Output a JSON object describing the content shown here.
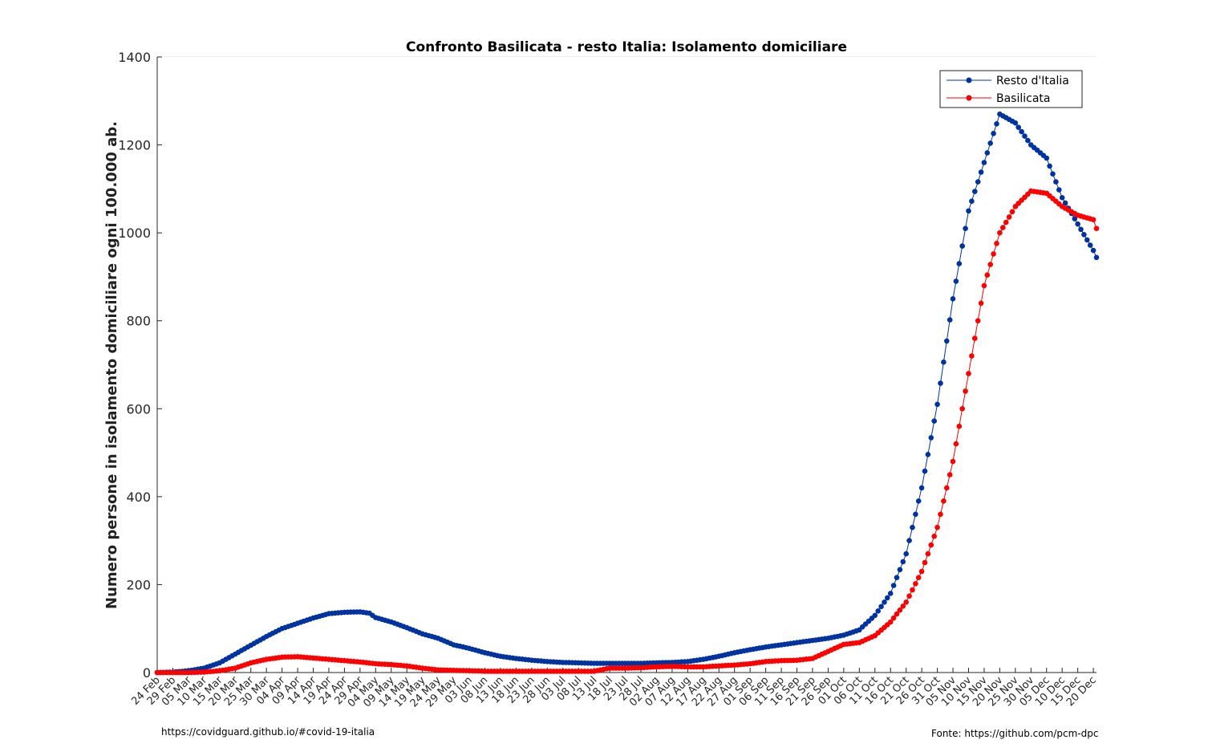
{
  "chart_data": {
    "type": "line",
    "title": "Confronto Basilicata - resto Italia: Isolamento domiciliare",
    "ylabel": "Numero persone in isolamento domiciliare ogni 100.000 ab.",
    "xlabel": "",
    "ylim": [
      0,
      1400
    ],
    "yticks": [
      0,
      200,
      400,
      600,
      800,
      1000,
      1200,
      1400
    ],
    "grid": true,
    "legend_position": "top-right",
    "x_start": "24 Feb",
    "x_end": "21 Dec",
    "xtick_labels": [
      "24 Feb",
      "29 Feb",
      "05 Mar",
      "10 Mar",
      "15 Mar",
      "20 Mar",
      "25 Mar",
      "30 Mar",
      "04 Apr",
      "09 Apr",
      "14 Apr",
      "19 Apr",
      "24 Apr",
      "29 Apr",
      "04 May",
      "09 May",
      "14 May",
      "19 May",
      "24 May",
      "29 May",
      "03 Jun",
      "08 Jun",
      "13 Jun",
      "18 Jun",
      "23 Jun",
      "28 Jun",
      "03 Jul",
      "08 Jul",
      "13 Jul",
      "18 Jul",
      "23 Jul",
      "28 Jul",
      "02 Aug",
      "07 Aug",
      "12 Aug",
      "17 Aug",
      "22 Aug",
      "27 Aug",
      "01 Sep",
      "06 Sep",
      "11 Sep",
      "16 Sep",
      "21 Sep",
      "26 Sep",
      "01 Oct",
      "06 Oct",
      "11 Oct",
      "16 Oct",
      "21 Oct",
      "26 Oct",
      "31 Oct",
      "05 Nov",
      "10 Nov",
      "15 Nov",
      "20 Nov",
      "25 Nov",
      "30 Nov",
      "05 Dec",
      "10 Dec",
      "15 Dec",
      "20 Dec"
    ],
    "series": [
      {
        "name": "Resto d'Italia",
        "color": "#0033a0",
        "points": [
          [
            "24 Feb",
            0
          ],
          [
            "29 Feb",
            1
          ],
          [
            "05 Mar",
            4
          ],
          [
            "10 Mar",
            10
          ],
          [
            "15 Mar",
            22
          ],
          [
            "20 Mar",
            42
          ],
          [
            "25 Mar",
            62
          ],
          [
            "30 Mar",
            82
          ],
          [
            "04 Apr",
            100
          ],
          [
            "09 Apr",
            112
          ],
          [
            "14 Apr",
            124
          ],
          [
            "19 Apr",
            134
          ],
          [
            "24 Apr",
            137
          ],
          [
            "29 Apr",
            138
          ],
          [
            "02 May",
            135
          ],
          [
            "04 May",
            125
          ],
          [
            "09 May",
            115
          ],
          [
            "14 May",
            102
          ],
          [
            "19 May",
            88
          ],
          [
            "24 May",
            78
          ],
          [
            "29 May",
            63
          ],
          [
            "03 Jun",
            55
          ],
          [
            "08 Jun",
            45
          ],
          [
            "13 Jun",
            37
          ],
          [
            "18 Jun",
            32
          ],
          [
            "23 Jun",
            28
          ],
          [
            "28 Jun",
            25
          ],
          [
            "03 Jul",
            23
          ],
          [
            "08 Jul",
            22
          ],
          [
            "13 Jul",
            21
          ],
          [
            "18 Jul",
            21
          ],
          [
            "23 Jul",
            21
          ],
          [
            "28 Jul",
            21
          ],
          [
            "02 Aug",
            22
          ],
          [
            "07 Aug",
            23
          ],
          [
            "12 Aug",
            25
          ],
          [
            "17 Aug",
            30
          ],
          [
            "22 Aug",
            37
          ],
          [
            "27 Aug",
            45
          ],
          [
            "01 Sep",
            52
          ],
          [
            "06 Sep",
            58
          ],
          [
            "11 Sep",
            63
          ],
          [
            "16 Sep",
            68
          ],
          [
            "21 Sep",
            73
          ],
          [
            "26 Sep",
            78
          ],
          [
            "01 Oct",
            85
          ],
          [
            "06 Oct",
            97
          ],
          [
            "11 Oct",
            130
          ],
          [
            "16 Oct",
            180
          ],
          [
            "21 Oct",
            270
          ],
          [
            "26 Oct",
            420
          ],
          [
            "31 Oct",
            610
          ],
          [
            "05 Nov",
            850
          ],
          [
            "10 Nov",
            1050
          ],
          [
            "15 Nov",
            1160
          ],
          [
            "20 Nov",
            1270
          ],
          [
            "25 Nov",
            1250
          ],
          [
            "30 Nov",
            1200
          ],
          [
            "05 Dec",
            1170
          ],
          [
            "10 Dec",
            1080
          ],
          [
            "15 Dec",
            1020
          ],
          [
            "20 Dec",
            960
          ],
          [
            "21 Dec",
            944
          ]
        ]
      },
      {
        "name": "Basilicata",
        "color": "#ff0000",
        "points": [
          [
            "24 Feb",
            0
          ],
          [
            "29 Feb",
            0
          ],
          [
            "05 Mar",
            0
          ],
          [
            "10 Mar",
            1
          ],
          [
            "15 Mar",
            4
          ],
          [
            "20 Mar",
            10
          ],
          [
            "25 Mar",
            22
          ],
          [
            "30 Mar",
            30
          ],
          [
            "04 Apr",
            35
          ],
          [
            "09 Apr",
            36
          ],
          [
            "14 Apr",
            33
          ],
          [
            "19 Apr",
            30
          ],
          [
            "24 Apr",
            27
          ],
          [
            "29 Apr",
            24
          ],
          [
            "04 May",
            20
          ],
          [
            "09 May",
            18
          ],
          [
            "14 May",
            15
          ],
          [
            "19 May",
            10
          ],
          [
            "24 May",
            6
          ],
          [
            "29 May",
            5
          ],
          [
            "03 Jun",
            4
          ],
          [
            "08 Jun",
            3
          ],
          [
            "13 Jun",
            3
          ],
          [
            "18 Jun",
            3
          ],
          [
            "23 Jun",
            3
          ],
          [
            "28 Jun",
            3
          ],
          [
            "03 Jul",
            3
          ],
          [
            "08 Jul",
            3
          ],
          [
            "13 Jul",
            3
          ],
          [
            "18 Jul",
            10
          ],
          [
            "23 Jul",
            10
          ],
          [
            "28 Jul",
            11
          ],
          [
            "02 Aug",
            13
          ],
          [
            "07 Aug",
            14
          ],
          [
            "12 Aug",
            13
          ],
          [
            "17 Aug",
            13
          ],
          [
            "22 Aug",
            15
          ],
          [
            "27 Aug",
            17
          ],
          [
            "01 Sep",
            20
          ],
          [
            "06 Sep",
            25
          ],
          [
            "11 Sep",
            27
          ],
          [
            "16 Sep",
            28
          ],
          [
            "21 Sep",
            32
          ],
          [
            "26 Sep",
            48
          ],
          [
            "01 Oct",
            64
          ],
          [
            "06 Oct",
            68
          ],
          [
            "11 Oct",
            84
          ],
          [
            "16 Oct",
            115
          ],
          [
            "21 Oct",
            160
          ],
          [
            "26 Oct",
            230
          ],
          [
            "31 Oct",
            330
          ],
          [
            "05 Nov",
            480
          ],
          [
            "10 Nov",
            680
          ],
          [
            "15 Nov",
            880
          ],
          [
            "20 Nov",
            1000
          ],
          [
            "25 Nov",
            1060
          ],
          [
            "30 Nov",
            1095
          ],
          [
            "05 Dec",
            1090
          ],
          [
            "10 Dec",
            1060
          ],
          [
            "15 Dec",
            1040
          ],
          [
            "20 Dec",
            1030
          ],
          [
            "21 Dec",
            1010
          ]
        ]
      }
    ]
  },
  "footer": {
    "left": "https://covidguard.github.io/#covid-19-italia",
    "right": "Fonte: https://github.com/pcm-dpc"
  }
}
